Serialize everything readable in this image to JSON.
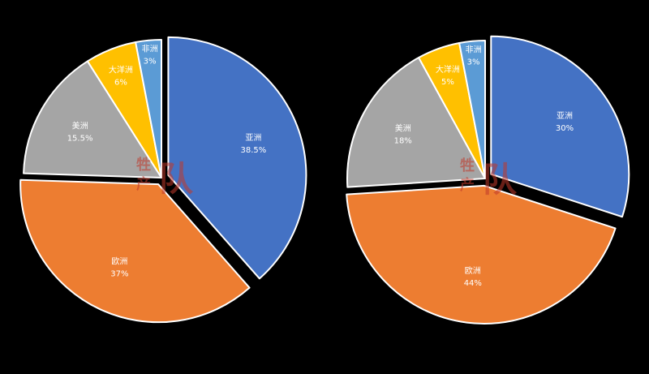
{
  "chart_data": [
    {
      "type": "pie",
      "labels": [
        "亚洲",
        "欧洲",
        "美洲",
        "大洋洲",
        "非洲"
      ],
      "values": [
        38.5,
        37,
        15.5,
        6,
        3
      ],
      "value_labels": [
        "38.5%",
        "37%",
        "15.5%",
        "6%",
        "3%"
      ],
      "colors": [
        "#4472C4",
        "#ED7D31",
        "#A5A5A5",
        "#FFC000",
        "#5B9BD5"
      ],
      "exploded": [
        true,
        true,
        false,
        false,
        false
      ],
      "start": "12 o'clock",
      "direction": "clockwise"
    },
    {
      "type": "pie",
      "labels": [
        "亚洲",
        "欧洲",
        "美洲",
        "大洋洲",
        "非洲"
      ],
      "values": [
        30,
        44,
        18,
        5,
        3
      ],
      "value_labels": [
        "30%",
        "44%",
        "18%",
        "5%",
        "3%"
      ],
      "colors": [
        "#4472C4",
        "#ED7D31",
        "#A5A5A5",
        "#FFC000",
        "#5B9BD5"
      ],
      "exploded": [
        true,
        true,
        false,
        false,
        false
      ],
      "start": "12 o'clock",
      "direction": "clockwise"
    }
  ],
  "watermark": {
    "text_top": "牲",
    "text_bottom": "产",
    "text_big": "队",
    "color": "#C0392B"
  }
}
